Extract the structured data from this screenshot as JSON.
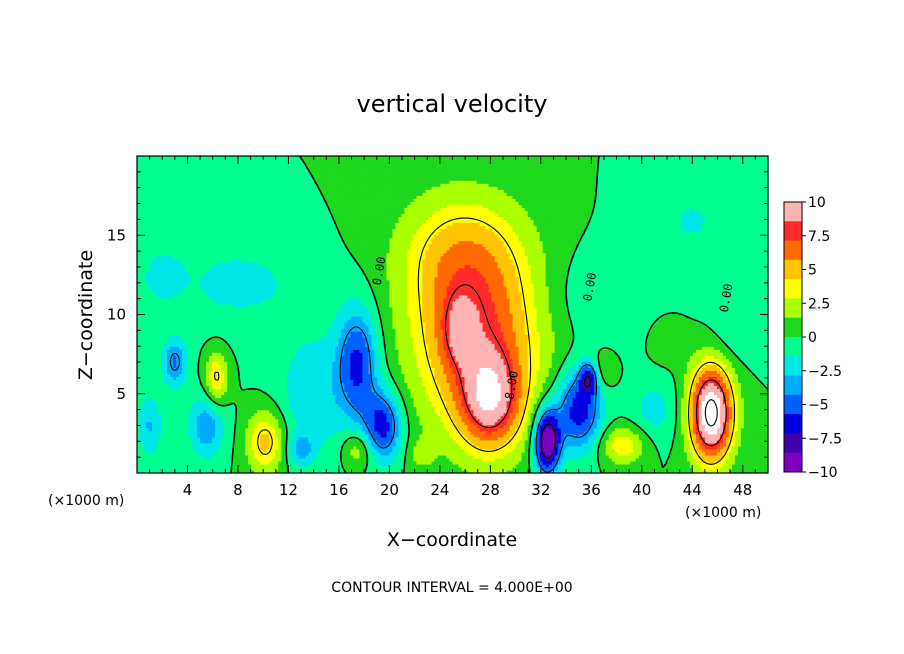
{
  "chart_data": {
    "type": "heatmap",
    "title": "vertical velocity",
    "xlabel": "X−coordinate",
    "ylabel": "Z−coordinate",
    "x_unit_label_left": "(×1000 m)",
    "x_unit_label_right": "(×1000 m)",
    "footer": "CONTOUR INTERVAL = 4.000E+00",
    "xlim": [
      0,
      50
    ],
    "ylim": [
      0,
      20
    ],
    "x_ticks": [
      4,
      8,
      12,
      16,
      20,
      24,
      28,
      32,
      36,
      40,
      44,
      48
    ],
    "y_ticks": [
      5,
      10,
      15
    ],
    "colorbar": {
      "ticks": [
        10,
        7.5,
        5,
        2.5,
        0,
        -2.5,
        -5,
        -7.5,
        -10
      ],
      "tick_labels": [
        "10",
        "7.5",
        "5",
        "2.5",
        "0",
        "−2.5",
        "−5",
        "−7.5",
        "−10"
      ],
      "colors": [
        "#ffb3b3",
        "#ff2a2a",
        "#ff6a00",
        "#ffc400",
        "#ffff00",
        "#aaff00",
        "#1ed81e",
        "#00ff90",
        "#00e6e6",
        "#00aaff",
        "#0060ff",
        "#0000e0",
        "#4000aa",
        "#8000c0"
      ]
    },
    "contour_labels": [
      "0.00",
      "0.00",
      "8.00",
      "0.00"
    ],
    "blobs": [
      {
        "x": 27.0,
        "z": 8.5,
        "rx": 5.2,
        "rz": 6.0,
        "amp": 7.0
      },
      {
        "x": 28.0,
        "z": 4.5,
        "rx": 2.4,
        "rz": 3.0,
        "amp": 7.0
      },
      {
        "x": 25.5,
        "z": 9.0,
        "rx": 1.4,
        "rz": 2.2,
        "amp": 3.0
      },
      {
        "x": 25.5,
        "z": 14.0,
        "rx": 5.0,
        "rz": 4.0,
        "amp": 3.5
      },
      {
        "x": 45.5,
        "z": 3.8,
        "rx": 1.7,
        "rz": 3.0,
        "amp": 13.0
      },
      {
        "x": 10.2,
        "z": 2.0,
        "rx": 1.5,
        "rz": 2.0,
        "amp": 5.0
      },
      {
        "x": 6.3,
        "z": 6.0,
        "rx": 0.9,
        "rz": 1.7,
        "amp": 4.5
      },
      {
        "x": 38.5,
        "z": 1.8,
        "rx": 1.8,
        "rz": 1.2,
        "amp": 4.0
      },
      {
        "x": 17.5,
        "z": 1.5,
        "rx": 1.2,
        "rz": 1.2,
        "amp": 3.0
      },
      {
        "x": 37.0,
        "z": 6.5,
        "rx": 1.0,
        "rz": 1.2,
        "amp": 2.0
      },
      {
        "x": 32.5,
        "z": 2.0,
        "rx": 1.0,
        "rz": 2.0,
        "amp": -11.0
      },
      {
        "x": 35.0,
        "z": 4.0,
        "rx": 1.8,
        "rz": 2.5,
        "amp": -7.0
      },
      {
        "x": 35.8,
        "z": 6.0,
        "rx": 0.7,
        "rz": 1.0,
        "amp": -6.0
      },
      {
        "x": 17.5,
        "z": 7.0,
        "rx": 1.6,
        "rz": 3.5,
        "amp": -6.0
      },
      {
        "x": 19.5,
        "z": 3.0,
        "rx": 1.5,
        "rz": 2.2,
        "amp": -6.5
      },
      {
        "x": 3.0,
        "z": 7.0,
        "rx": 1.0,
        "rz": 1.5,
        "amp": -4.5
      },
      {
        "x": 5.5,
        "z": 3.0,
        "rx": 1.4,
        "rz": 2.0,
        "amp": -4.0
      },
      {
        "x": 14.0,
        "z": 5.0,
        "rx": 3.0,
        "rz": 4.0,
        "amp": -2.5
      },
      {
        "x": 8.0,
        "z": 12.0,
        "rx": 6.0,
        "rz": 3.0,
        "amp": -1.8
      },
      {
        "x": 2.0,
        "z": 12.5,
        "rx": 1.5,
        "rz": 1.5,
        "amp": -2.0
      },
      {
        "x": 37.0,
        "z": 11.0,
        "rx": 5.0,
        "rz": 3.0,
        "amp": -1.5
      },
      {
        "x": 41.0,
        "z": 4.0,
        "rx": 2.0,
        "rz": 2.0,
        "amp": -2.0
      },
      {
        "x": 47.5,
        "z": 9.0,
        "rx": 2.0,
        "rz": 2.0,
        "amp": -1.5
      },
      {
        "x": 44.0,
        "z": 16.0,
        "rx": 4.0,
        "rz": 3.0,
        "amp": -1.5
      },
      {
        "x": 1.0,
        "z": 3.0,
        "rx": 1.0,
        "rz": 2.0,
        "amp": -3.0
      },
      {
        "x": 22.5,
        "z": 1.2,
        "rx": 1.0,
        "rz": 1.0,
        "amp": 1.5
      },
      {
        "x": 13.0,
        "z": 1.5,
        "rx": 1.0,
        "rz": 1.0,
        "amp": -3.0
      },
      {
        "x": 42.0,
        "z": 8.5,
        "rx": 1.5,
        "rz": 1.5,
        "amp": 1.5
      }
    ]
  }
}
